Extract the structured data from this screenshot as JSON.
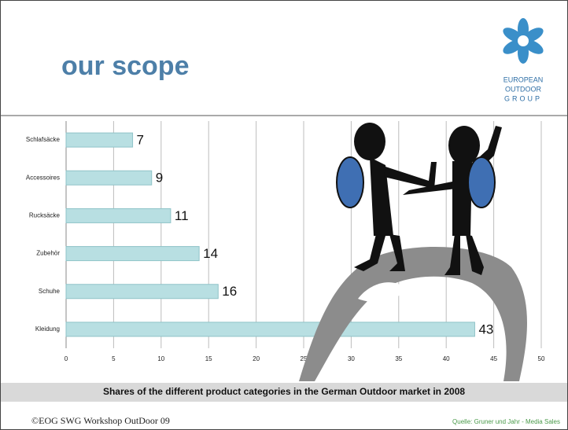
{
  "slide": {
    "title": "our scope",
    "logo": [
      "EUROPEAN",
      "OUTDOOR",
      "GROUP"
    ],
    "footer": "©EOG SWG Workshop OutDoor 09",
    "source": "Quelle: Gruner und Jahr - Media Sales"
  },
  "chart_data": {
    "type": "bar",
    "orientation": "horizontal",
    "caption": "Shares of the different product categories in the German Outdoor market in 2008",
    "categories": [
      "Schlafsäcke",
      "Accessoires",
      "Rucksäcke",
      "Zubehör",
      "Schuhe",
      "Kleidung"
    ],
    "values": [
      7,
      9,
      11,
      14,
      16,
      43
    ],
    "color": "#b8dfe2",
    "xlim": [
      0,
      50
    ],
    "xticks": [
      0,
      5,
      10,
      15,
      20,
      25,
      30,
      35,
      40,
      45,
      50
    ],
    "grid": true
  }
}
